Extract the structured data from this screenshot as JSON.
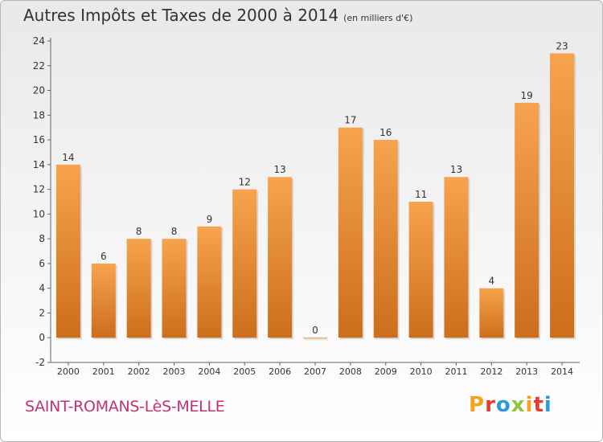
{
  "title": {
    "main": "Autres Impôts et Taxes de 2000 à 2014",
    "unit": "(en milliers d'€)"
  },
  "place_name": "SAINT-ROMANS-LèS-MELLE",
  "logo": {
    "text": "Proxiti",
    "colors": [
      "#f7a21b",
      "#e63c2e",
      "#2f9bd6",
      "#8dc63f",
      "#f7a21b",
      "#e63c2e",
      "#2f9bd6"
    ]
  },
  "colors": {
    "bar_top": "#f7a34e",
    "bar_bottom": "#cc6e1c",
    "place": "#c0336e"
  },
  "chart_data": {
    "type": "bar",
    "title": "Autres Impôts et Taxes de 2000 à 2014",
    "unit_label": "(en milliers d'€)",
    "categories": [
      "2000",
      "2001",
      "2002",
      "2003",
      "2004",
      "2005",
      "2006",
      "2007",
      "2008",
      "2009",
      "2010",
      "2011",
      "2012",
      "2013",
      "2014"
    ],
    "values": [
      14,
      6,
      8,
      8,
      9,
      12,
      13,
      0,
      17,
      16,
      11,
      13,
      4,
      19,
      23
    ],
    "data_labels": [
      "14",
      "6",
      "8",
      "8",
      "9",
      "12",
      "13",
      "0",
      "17",
      "16",
      "11",
      "13",
      "4",
      "19",
      "23"
    ],
    "ylim": [
      -2,
      24
    ],
    "yticks": [
      "-2",
      "0",
      "2",
      "4",
      "6",
      "8",
      "10",
      "12",
      "14",
      "16",
      "18",
      "20",
      "22",
      "24"
    ],
    "grid": false
  }
}
